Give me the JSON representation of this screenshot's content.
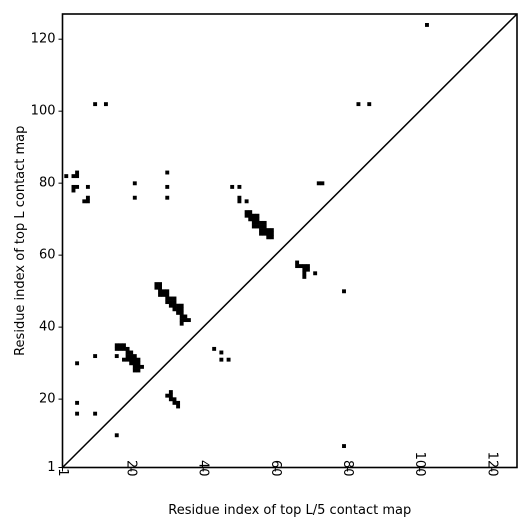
{
  "chart_data": {
    "type": "scatter",
    "subtype": "contact-map",
    "title": "",
    "xlabel": "Residue index of top L/5 contact map",
    "ylabel": "Residue index of top L contact map",
    "xlim": [
      1,
      127
    ],
    "ylim": [
      1,
      127
    ],
    "grid": false,
    "xticks": [
      1,
      20,
      40,
      60,
      80,
      100,
      120
    ],
    "yticks": [
      1,
      20,
      40,
      60,
      80,
      100,
      120
    ],
    "xtick_labels": [
      "1",
      "20",
      "40",
      "60",
      "80",
      "100",
      "120"
    ],
    "ytick_labels": [
      "1",
      "20",
      "40",
      "60",
      "80",
      "100",
      "120"
    ],
    "xtick_rotation": -90,
    "marker_color": "#000000",
    "diagonal": {
      "from": [
        1,
        1
      ],
      "to": [
        127,
        127
      ],
      "color": "#000000"
    },
    "series": [
      {
        "points": [
          [
            2,
            82
          ],
          [
            4,
            82
          ],
          [
            5,
            82
          ],
          [
            5,
            83
          ],
          [
            4,
            79
          ],
          [
            5,
            79
          ],
          [
            4,
            78
          ],
          [
            8,
            79
          ],
          [
            8,
            76
          ],
          [
            8,
            75
          ],
          [
            7,
            75
          ],
          [
            10,
            102
          ],
          [
            13,
            102
          ],
          [
            5,
            30
          ],
          [
            5,
            19
          ],
          [
            5,
            16
          ],
          [
            10,
            32
          ],
          [
            10,
            16
          ],
          [
            16,
            10
          ],
          [
            16,
            35
          ],
          [
            17,
            35
          ],
          [
            18,
            35
          ],
          [
            16,
            34
          ],
          [
            17,
            34
          ],
          [
            18,
            34
          ],
          [
            19,
            34
          ],
          [
            19,
            33
          ],
          [
            20,
            33
          ],
          [
            16,
            32
          ],
          [
            19,
            32
          ],
          [
            20,
            32
          ],
          [
            21,
            32
          ],
          [
            18,
            31
          ],
          [
            19,
            31
          ],
          [
            20,
            31
          ],
          [
            21,
            31
          ],
          [
            22,
            31
          ],
          [
            20,
            30
          ],
          [
            21,
            30
          ],
          [
            22,
            30
          ],
          [
            21,
            29
          ],
          [
            22,
            29
          ],
          [
            23,
            29
          ],
          [
            21,
            28
          ],
          [
            22,
            28
          ],
          [
            21,
            80
          ],
          [
            21,
            76
          ],
          [
            30,
            83
          ],
          [
            30,
            79
          ],
          [
            30,
            76
          ],
          [
            27,
            52
          ],
          [
            28,
            52
          ],
          [
            27,
            51
          ],
          [
            28,
            51
          ],
          [
            28,
            50
          ],
          [
            29,
            50
          ],
          [
            30,
            50
          ],
          [
            28,
            49
          ],
          [
            29,
            49
          ],
          [
            30,
            49
          ],
          [
            30,
            48
          ],
          [
            31,
            48
          ],
          [
            32,
            48
          ],
          [
            30,
            47
          ],
          [
            31,
            47
          ],
          [
            32,
            47
          ],
          [
            31,
            46
          ],
          [
            32,
            46
          ],
          [
            33,
            46
          ],
          [
            34,
            46
          ],
          [
            32,
            45
          ],
          [
            33,
            45
          ],
          [
            34,
            45
          ],
          [
            33,
            44
          ],
          [
            34,
            44
          ],
          [
            34,
            43
          ],
          [
            35,
            43
          ],
          [
            34,
            42
          ],
          [
            35,
            42
          ],
          [
            36,
            42
          ],
          [
            34,
            41
          ],
          [
            30,
            21
          ],
          [
            31,
            21
          ],
          [
            31,
            22
          ],
          [
            31,
            20
          ],
          [
            32,
            20
          ],
          [
            32,
            19
          ],
          [
            33,
            19
          ],
          [
            33,
            18
          ],
          [
            43,
            34
          ],
          [
            45,
            33
          ],
          [
            45,
            31
          ],
          [
            47,
            31
          ],
          [
            48,
            79
          ],
          [
            50,
            79
          ],
          [
            50,
            76
          ],
          [
            50,
            75
          ],
          [
            52,
            75
          ],
          [
            52,
            72
          ],
          [
            53,
            72
          ],
          [
            52,
            71
          ],
          [
            53,
            71
          ],
          [
            54,
            71
          ],
          [
            55,
            71
          ],
          [
            53,
            70
          ],
          [
            54,
            70
          ],
          [
            55,
            70
          ],
          [
            54,
            69
          ],
          [
            55,
            69
          ],
          [
            56,
            69
          ],
          [
            57,
            69
          ],
          [
            54,
            68
          ],
          [
            55,
            68
          ],
          [
            56,
            68
          ],
          [
            57,
            68
          ],
          [
            56,
            67
          ],
          [
            57,
            67
          ],
          [
            58,
            67
          ],
          [
            59,
            67
          ],
          [
            56,
            66
          ],
          [
            57,
            66
          ],
          [
            58,
            66
          ],
          [
            59,
            66
          ],
          [
            58,
            65
          ],
          [
            59,
            65
          ],
          [
            66,
            58
          ],
          [
            66,
            57
          ],
          [
            67,
            57
          ],
          [
            68,
            57
          ],
          [
            69,
            57
          ],
          [
            68,
            56
          ],
          [
            69,
            56
          ],
          [
            68,
            55
          ],
          [
            68,
            54
          ],
          [
            71,
            55
          ],
          [
            72,
            80
          ],
          [
            73,
            80
          ],
          [
            79,
            50
          ],
          [
            79,
            7
          ],
          [
            83,
            102
          ],
          [
            86,
            102
          ],
          [
            102,
            124
          ]
        ]
      }
    ]
  }
}
